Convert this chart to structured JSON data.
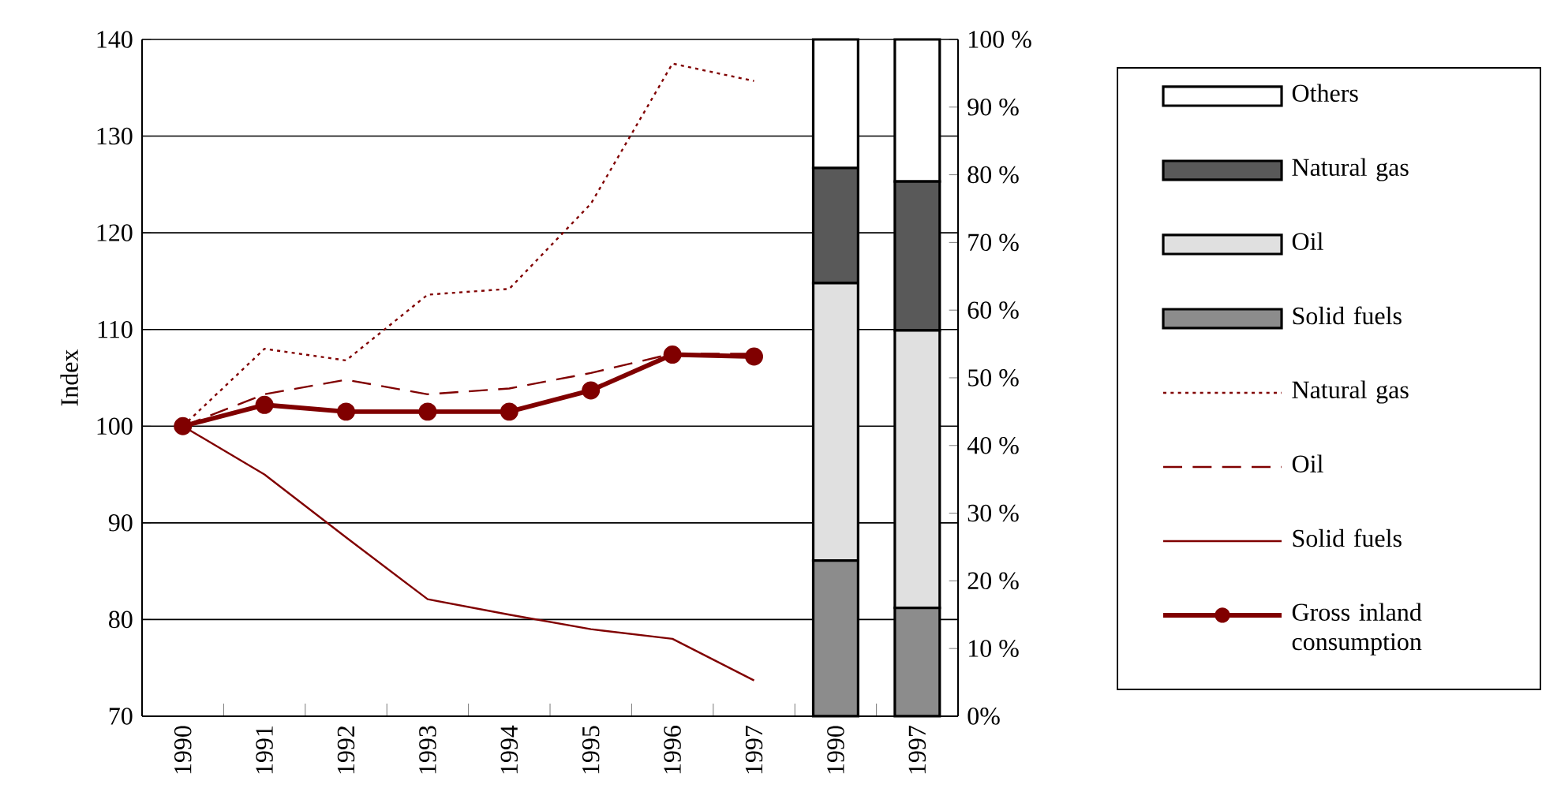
{
  "chart_data": {
    "type": "line",
    "ylabel": "Index",
    "categories": [
      "1990",
      "1991",
      "1992",
      "1993",
      "1994",
      "1995",
      "1996",
      "1997",
      "1990",
      "1997"
    ],
    "series": [
      {
        "name": "Gross inland consumption",
        "color": "#800000",
        "marker": "circle",
        "line_style": "solid",
        "values": [
          100,
          102.2,
          101.5,
          101.5,
          101.5,
          103.7,
          107.4,
          107.2,
          null,
          null
        ]
      },
      {
        "name": "Solid fuels",
        "color": "#800000",
        "marker": "none",
        "line_style": "solid",
        "values": [
          100,
          95,
          88.5,
          82.1,
          80.5,
          79,
          78,
          73.7,
          null,
          null
        ]
      },
      {
        "name": "Oil",
        "color": "#800000",
        "marker": "none",
        "line_style": "dashed",
        "values": [
          100,
          103.3,
          104.8,
          103.3,
          103.9,
          105.5,
          107.5,
          107.5,
          null,
          null
        ]
      },
      {
        "name": "Natural gas",
        "color": "#800000",
        "marker": "none",
        "line_style": "dotted",
        "values": [
          100,
          108,
          106.8,
          113.6,
          114.2,
          123,
          137.5,
          135.7,
          null,
          null
        ]
      },
      {
        "name": "Solid fuels",
        "type": "bar",
        "axis": "y2",
        "color": "#8c8c8c",
        "values": [
          null,
          null,
          null,
          null,
          null,
          null,
          null,
          null,
          23,
          16
        ]
      },
      {
        "name": "Oil",
        "type": "bar",
        "axis": "y2",
        "color": "#e0e0e0",
        "values": [
          null,
          null,
          null,
          null,
          null,
          null,
          null,
          null,
          41,
          41
        ]
      },
      {
        "name": "Natural gas",
        "type": "bar",
        "axis": "y2",
        "color": "#595959",
        "values": [
          null,
          null,
          null,
          null,
          null,
          null,
          null,
          null,
          17,
          22
        ]
      },
      {
        "name": "Others",
        "type": "bar",
        "axis": "y2",
        "color": "#ffffff",
        "values": [
          null,
          null,
          null,
          null,
          null,
          null,
          null,
          null,
          19,
          21
        ]
      }
    ],
    "stacked": true,
    "ylim": [
      70,
      140
    ],
    "yticks": [
      70,
      80,
      90,
      100,
      110,
      120,
      130,
      140
    ],
    "y2lim": [
      0,
      100
    ],
    "y2ticks": [
      {
        "value": 0,
        "label": "0%"
      },
      {
        "value": 10,
        "label": "10 %"
      },
      {
        "value": 20,
        "label": "20 %"
      },
      {
        "value": 30,
        "label": "30 %"
      },
      {
        "value": 40,
        "label": "40 %"
      },
      {
        "value": 50,
        "label": "50 %"
      },
      {
        "value": 60,
        "label": "60 %"
      },
      {
        "value": 70,
        "label": "70 %"
      },
      {
        "value": 80,
        "label": "80 %"
      },
      {
        "value": 90,
        "label": "90 %"
      },
      {
        "value": 100,
        "label": "100 %"
      }
    ],
    "grid": "y",
    "legend": "right"
  }
}
